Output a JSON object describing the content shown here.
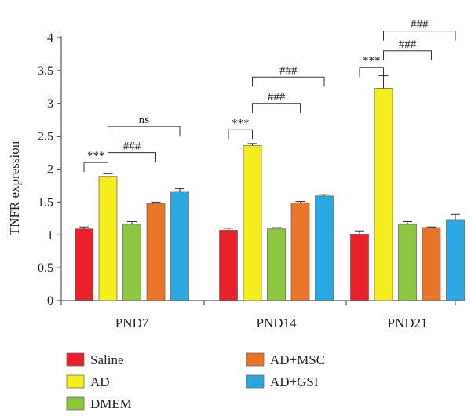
{
  "chart_data": {
    "type": "bar",
    "ylabel": "TNFR expression",
    "xlabel": "",
    "ylim": [
      0,
      4
    ],
    "yticks": [
      "0",
      "0.5",
      "1",
      "1.5",
      "2",
      "2.5",
      "3",
      "3.5",
      "4"
    ],
    "categories": [
      "PND7",
      "PND14",
      "PND21"
    ],
    "legend_position": "bottom",
    "series": [
      {
        "name": "Saline",
        "color": "#e8202a",
        "values": [
          1.09,
          1.07,
          1.01
        ],
        "errors": [
          0.03,
          0.03,
          0.05
        ]
      },
      {
        "name": "AD",
        "color": "#f5ec1e",
        "values": [
          1.89,
          2.36,
          3.23
        ],
        "errors": [
          0.04,
          0.03,
          0.19
        ]
      },
      {
        "name": "DMEM",
        "color": "#8cc63f",
        "values": [
          1.16,
          1.09,
          1.16
        ],
        "errors": [
          0.04,
          0.02,
          0.04
        ]
      },
      {
        "name": "AD+MSC",
        "color": "#e8742a",
        "values": [
          1.48,
          1.49,
          1.11
        ],
        "errors": [
          0.02,
          0.02,
          0.01
        ]
      },
      {
        "name": "AD+GSI",
        "color": "#29a8e0",
        "values": [
          1.66,
          1.59,
          1.23
        ],
        "errors": [
          0.04,
          0.02,
          0.08
        ]
      }
    ],
    "annotations": [
      {
        "group": 0,
        "from": 0,
        "to": 1,
        "label": "***",
        "y": 2.1
      },
      {
        "group": 0,
        "from": 1,
        "to": 3,
        "label": "###",
        "y": 2.25
      },
      {
        "group": 0,
        "from": 1,
        "to": 4,
        "label": "ns",
        "y": 2.65
      },
      {
        "group": 1,
        "from": 0,
        "to": 1,
        "label": "***",
        "y": 2.6
      },
      {
        "group": 1,
        "from": 1,
        "to": 3,
        "label": "###",
        "y": 3.0
      },
      {
        "group": 1,
        "from": 1,
        "to": 4,
        "label": "###",
        "y": 3.4
      },
      {
        "group": 2,
        "from": 0,
        "to": 1,
        "label": "***",
        "y": 3.55
      },
      {
        "group": 2,
        "from": 1,
        "to": 3,
        "label": "###",
        "y": 3.8
      },
      {
        "group": 2,
        "from": 1,
        "to": 4,
        "label": "###",
        "y": 4.1
      }
    ]
  }
}
